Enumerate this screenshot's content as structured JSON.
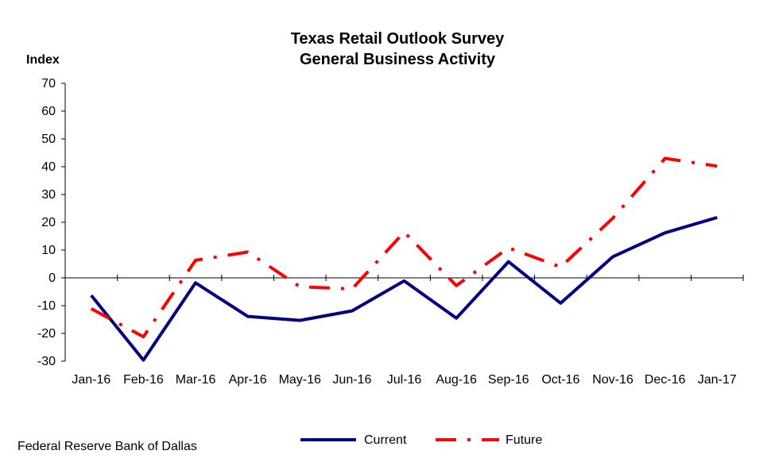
{
  "chart_data": {
    "type": "line",
    "title": "Texas Retail Outlook Survey",
    "subtitle": "General Business Activity",
    "ylabel": "Index",
    "xlabel": "",
    "ylim": [
      -30,
      70
    ],
    "yticks": [
      70,
      60,
      50,
      40,
      30,
      20,
      10,
      0,
      -10,
      -20,
      -30
    ],
    "categories": [
      "Jan-16",
      "Feb-16",
      "Mar-16",
      "Apr-16",
      "May-16",
      "Jun-16",
      "Jul-16",
      "Aug-16",
      "Sep-16",
      "Oct-16",
      "Nov-16",
      "Dec-16",
      "Jan-17"
    ],
    "series": [
      {
        "name": "Current",
        "color": "#000080",
        "style": "solid",
        "values": [
          -6.3,
          -29.6,
          -1.8,
          -13.9,
          -15.3,
          -11.9,
          -1.1,
          -14.5,
          5.8,
          -9.1,
          7.6,
          16.2,
          21.7
        ]
      },
      {
        "name": "Future",
        "color": "#ff0000",
        "style": "dash-dot",
        "values": [
          -11.1,
          -21.2,
          6.3,
          9.3,
          -3.2,
          -4.0,
          16.5,
          -2.8,
          10.8,
          3.9,
          21.5,
          43.0,
          40.2
        ]
      }
    ],
    "grid": false,
    "legend_position": "bottom-center",
    "source": "Federal Reserve Bank of Dallas"
  }
}
